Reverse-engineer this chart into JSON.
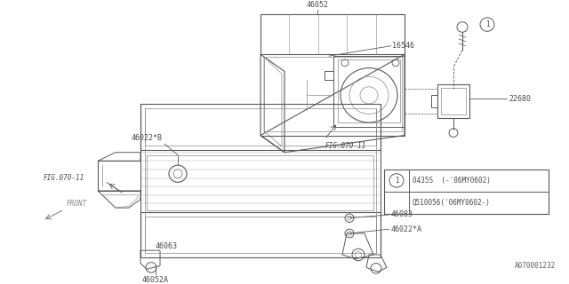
{
  "bg_color": "#ffffff",
  "lc": "#4a4a4a",
  "diagram_id": "A070001232",
  "legend_rows": [
    {
      "circle": "1",
      "text": "0435S  (-’06MY0602)"
    },
    {
      "circle": "",
      "text": "Q510056(’06MY0602-)"
    }
  ]
}
